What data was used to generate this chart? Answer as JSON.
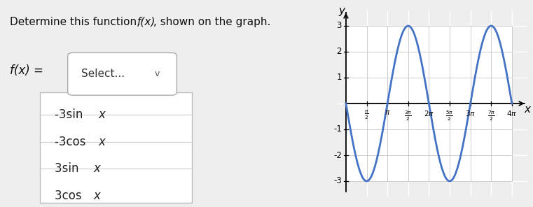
{
  "title_parts": [
    "Determine this function, ",
    "f(x)",
    ", shown on the graph."
  ],
  "fx_label": "f(x) =",
  "select_label": "Select...",
  "dropdown_options": [
    "-3sin x",
    "-3cos x",
    "3sin x",
    "3cos x"
  ],
  "curve_color": "#4472C4",
  "curve_linewidth": 2.0,
  "amplitude": -3,
  "trig_func": "sin",
  "ylim": [
    -3.6,
    3.6
  ],
  "yticks": [
    -3,
    -2,
    -1,
    1,
    2,
    3
  ],
  "xtick_positions": [
    0.5,
    1.0,
    1.5,
    2.0,
    2.5,
    3.0,
    3.5,
    4.0
  ],
  "bg_color": "#eeeeee",
  "grid_color": "#ffffff",
  "text_color": "#000000"
}
